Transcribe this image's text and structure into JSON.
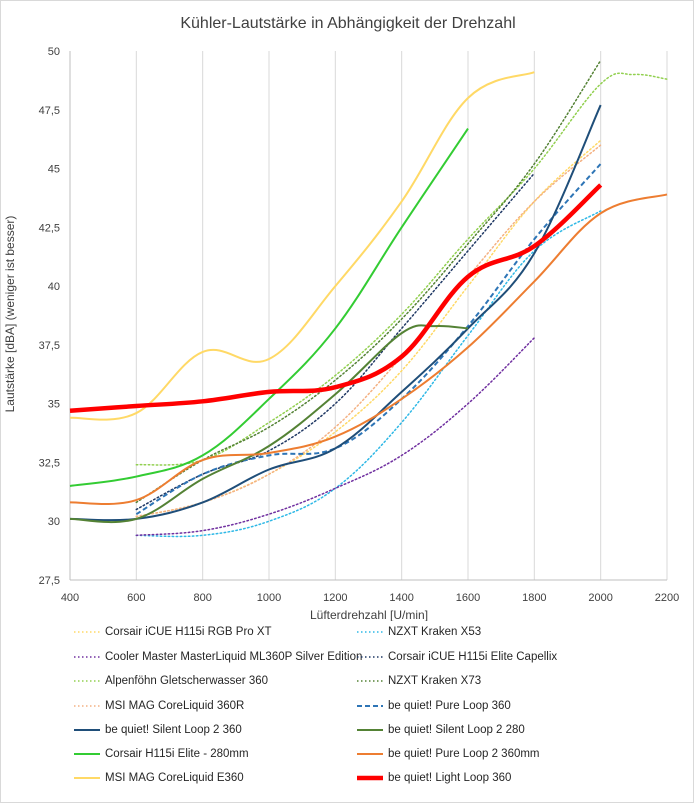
{
  "chart_data": {
    "type": "line",
    "title": "Kühler-Lautstärke in Abhängigkeit der Drehzahl",
    "xlabel": "Lüfterdrehzahl [U/min]",
    "ylabel": "Lautstärke [dBA] (weniger ist besser)",
    "xlim": [
      400,
      2200
    ],
    "ylim": [
      27.5,
      50
    ],
    "x_ticks": [
      400,
      600,
      800,
      1000,
      1200,
      1400,
      1600,
      1800,
      2000,
      2200
    ],
    "x_tick_labels": [
      "400",
      "600",
      "800",
      "1000",
      "1200",
      "1400",
      "1600",
      "1800",
      "2000",
      "2200"
    ],
    "y_ticks": [
      27.5,
      30,
      32.5,
      35,
      37.5,
      40,
      42.5,
      45,
      47.5,
      50
    ],
    "y_tick_labels": [
      "27,5",
      "30",
      "32,5",
      "35",
      "37,5",
      "40",
      "42,5",
      "45",
      "47,5",
      "50"
    ],
    "grid": "vertical",
    "legend": "bottom",
    "series": [
      {
        "name": "Corsair iCUE H115i RGB Pro XT",
        "color": "#ffd966",
        "style": "dotted",
        "width": 1.5,
        "points": [
          [
            600,
            30.2
          ],
          [
            800,
            30.8
          ],
          [
            1000,
            32.0
          ],
          [
            1200,
            33.8
          ],
          [
            1400,
            36.4
          ],
          [
            1600,
            40.0
          ],
          [
            1800,
            43.6
          ],
          [
            2000,
            46.2
          ]
        ]
      },
      {
        "name": "NZXT Kraken X53",
        "color": "#2eb8e6",
        "style": "dotted",
        "width": 1.5,
        "points": [
          [
            600,
            29.4
          ],
          [
            800,
            29.4
          ],
          [
            1000,
            30.0
          ],
          [
            1200,
            31.4
          ],
          [
            1400,
            34.2
          ],
          [
            1600,
            37.9
          ],
          [
            1800,
            41.5
          ],
          [
            2000,
            43.2
          ]
        ]
      },
      {
        "name": "Cooler Master MasterLiquid ML360P Silver Edition",
        "color": "#7030a0",
        "style": "dotted",
        "width": 1.5,
        "points": [
          [
            600,
            29.4
          ],
          [
            800,
            29.6
          ],
          [
            1000,
            30.3
          ],
          [
            1200,
            31.4
          ],
          [
            1400,
            32.8
          ],
          [
            1600,
            35.0
          ],
          [
            1800,
            37.8
          ]
        ]
      },
      {
        "name": "Corsair iCUE H115i Elite Capellix",
        "color": "#1f3864",
        "style": "dotted",
        "width": 1.5,
        "points": [
          [
            600,
            30.5
          ],
          [
            800,
            32.0
          ],
          [
            1000,
            33.0
          ],
          [
            1200,
            35.0
          ],
          [
            1400,
            38.2
          ],
          [
            1600,
            41.5
          ],
          [
            1800,
            44.8
          ]
        ]
      },
      {
        "name": "Alpenföhn Gletscherwasser 360",
        "color": "#92d050",
        "style": "dotted",
        "width": 1.5,
        "points": [
          [
            600,
            32.4
          ],
          [
            800,
            32.6
          ],
          [
            1000,
            34.2
          ],
          [
            1200,
            36.2
          ],
          [
            1400,
            38.8
          ],
          [
            1600,
            42.0
          ],
          [
            1800,
            45.0
          ],
          [
            2000,
            48.6
          ],
          [
            2100,
            49.0
          ],
          [
            2200,
            48.8
          ]
        ]
      },
      {
        "name": "NZXT Kraken X73",
        "color": "#548235",
        "style": "dotted",
        "width": 1.5,
        "points": [
          [
            600,
            30.8
          ],
          [
            800,
            32.6
          ],
          [
            1000,
            34.0
          ],
          [
            1200,
            36.0
          ],
          [
            1400,
            38.6
          ],
          [
            1600,
            41.8
          ],
          [
            1800,
            45.2
          ],
          [
            2000,
            49.6
          ]
        ]
      },
      {
        "name": "MSI MAG CoreLiquid 360R",
        "color": "#f4b183",
        "style": "dotted",
        "width": 1.5,
        "points": [
          [
            600,
            30.2
          ],
          [
            800,
            30.8
          ],
          [
            1000,
            32.0
          ],
          [
            1200,
            34.0
          ],
          [
            1400,
            37.0
          ],
          [
            1600,
            40.4
          ],
          [
            1800,
            43.6
          ],
          [
            2000,
            46.0
          ]
        ]
      },
      {
        "name": "be quiet! Pure Loop 360",
        "color": "#2e75b6",
        "style": "dashed",
        "width": 2,
        "points": [
          [
            600,
            30.3
          ],
          [
            800,
            32.0
          ],
          [
            1000,
            32.8
          ],
          [
            1200,
            33.1
          ],
          [
            1400,
            35.2
          ],
          [
            1600,
            38.3
          ],
          [
            1800,
            42.0
          ],
          [
            2000,
            45.2
          ]
        ]
      },
      {
        "name": "be quiet! Silent Loop 2 360",
        "color": "#1f4e79",
        "style": "solid",
        "width": 2,
        "points": [
          [
            400,
            30.1
          ],
          [
            600,
            30.1
          ],
          [
            800,
            30.8
          ],
          [
            1000,
            32.2
          ],
          [
            1200,
            33.1
          ],
          [
            1400,
            35.5
          ],
          [
            1600,
            38.2
          ],
          [
            1800,
            41.4
          ],
          [
            2000,
            47.7
          ]
        ]
      },
      {
        "name": "be quiet! Silent Loop 2 280",
        "color": "#548235",
        "style": "solid",
        "width": 2,
        "points": [
          [
            400,
            30.1
          ],
          [
            600,
            30.1
          ],
          [
            800,
            31.8
          ],
          [
            1000,
            33.2
          ],
          [
            1200,
            35.4
          ],
          [
            1400,
            38.0
          ],
          [
            1500,
            38.3
          ],
          [
            1600,
            38.2
          ]
        ]
      },
      {
        "name": "Corsair H115i Elite - 280mm",
        "color": "#33cc33",
        "style": "solid",
        "width": 2,
        "points": [
          [
            400,
            31.5
          ],
          [
            600,
            31.9
          ],
          [
            800,
            32.8
          ],
          [
            1000,
            35.2
          ],
          [
            1200,
            38.2
          ],
          [
            1400,
            42.5
          ],
          [
            1600,
            46.7
          ]
        ]
      },
      {
        "name": "be quiet! Pure Loop 2 360mm",
        "color": "#ed7d31",
        "style": "solid",
        "width": 2,
        "points": [
          [
            400,
            30.8
          ],
          [
            600,
            30.9
          ],
          [
            800,
            32.6
          ],
          [
            1000,
            32.9
          ],
          [
            1200,
            33.6
          ],
          [
            1400,
            35.2
          ],
          [
            1600,
            37.4
          ],
          [
            1800,
            40.2
          ],
          [
            2000,
            43.1
          ],
          [
            2200,
            43.9
          ]
        ]
      },
      {
        "name": "MSI MAG CoreLiquid E360",
        "color": "#ffd966",
        "style": "solid",
        "width": 2,
        "points": [
          [
            400,
            34.4
          ],
          [
            600,
            34.6
          ],
          [
            800,
            37.2
          ],
          [
            1000,
            36.9
          ],
          [
            1200,
            40.0
          ],
          [
            1400,
            43.6
          ],
          [
            1600,
            48.0
          ],
          [
            1800,
            49.1
          ]
        ]
      },
      {
        "name": "be quiet! Light Loop 360",
        "color": "#ff0000",
        "style": "solid",
        "width": 4.5,
        "points": [
          [
            400,
            34.7
          ],
          [
            600,
            34.9
          ],
          [
            800,
            35.1
          ],
          [
            1000,
            35.5
          ],
          [
            1200,
            35.7
          ],
          [
            1400,
            37.0
          ],
          [
            1600,
            40.4
          ],
          [
            1800,
            41.7
          ],
          [
            2000,
            44.3
          ]
        ]
      }
    ]
  }
}
